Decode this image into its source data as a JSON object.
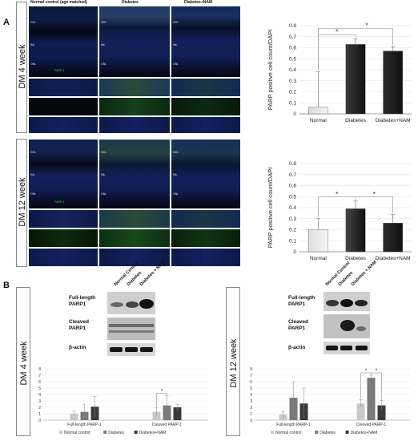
{
  "panels": {
    "A": "A",
    "B": "B"
  },
  "panel_a": {
    "column_headers": [
      "Normal control (age matched)",
      "Diabetes",
      "Diabetes+NAM"
    ],
    "row_label_top": "DM 4 week",
    "row_label_bottom": "DM 12 week",
    "layer_labels": {
      "gcl": "GCL",
      "inl": "INL",
      "onl": "ONL"
    },
    "marker_label": "PARP-1"
  },
  "panel_b": {
    "left": {
      "side_label": "DM 4 week",
      "lanes": [
        "Normal Control",
        "Diabetes",
        "Diabetes + NAM"
      ],
      "bands": [
        "Full-length PARP1",
        "Cleaved PARP1",
        "β-actin"
      ]
    },
    "right": {
      "side_label": "DM 12 week",
      "lanes": [
        "Normal Control",
        "Diabetes",
        "Diabetes + NAM"
      ],
      "bands": [
        "Full-length PARP1",
        "Cleaved PARP1",
        "β-actin"
      ]
    }
  },
  "chart_data": [
    {
      "type": "bar",
      "ylabel": "PARP positive cell count/DAPI",
      "categories": [
        "Normal",
        "Diabetes",
        "Diabetes+NAM"
      ],
      "values": [
        0.06,
        0.63,
        0.57
      ],
      "errors": [
        0.32,
        0.05,
        0.04
      ],
      "ylim": [
        0,
        0.8
      ],
      "yticks": [
        "0",
        "0.1",
        "0.2",
        "0.3",
        "0.4",
        "0.5",
        "0.6",
        "0.7",
        "0.8"
      ],
      "significance": [
        "*",
        "*"
      ],
      "colors": [
        "#d8d8d8",
        "#3a3a3a",
        "#2a2a2a"
      ]
    },
    {
      "type": "bar",
      "ylabel": "PARP positive cell count/DAPI",
      "categories": [
        "Normal",
        "Diabetes",
        "Diabetes+NAM"
      ],
      "values": [
        0.2,
        0.39,
        0.26
      ],
      "errors": [
        0.1,
        0.07,
        0.08
      ],
      "ylim": [
        0,
        0.8
      ],
      "yticks": [
        "0",
        "0.1",
        "0.2",
        "0.3",
        "0.4",
        "0.5",
        "0.6",
        "0.7",
        "0.8"
      ],
      "significance": [
        "*",
        "*"
      ],
      "colors": [
        "#e0e0e0",
        "#444444",
        "#2a2a2a"
      ]
    },
    {
      "type": "bar",
      "categories": [
        "Full-length PARP-1",
        "Cleaved PARP-1"
      ],
      "series": [
        {
          "name": "Normal control",
          "values": [
            1.0,
            1.3
          ],
          "errors": [
            0.4,
            0.6
          ]
        },
        {
          "name": "Diabetes",
          "values": [
            1.3,
            2.3
          ],
          "errors": [
            1.2,
            1.5
          ]
        },
        {
          "name": "Diabetes+NAM",
          "values": [
            2.1,
            2.0
          ],
          "errors": [
            1.6,
            0.5
          ]
        }
      ],
      "ylim": [
        0,
        8
      ],
      "yticks": [
        "0",
        "1",
        "2",
        "3",
        "4",
        "5",
        "6",
        "7",
        "8"
      ],
      "significance": [
        "*"
      ],
      "colors": [
        "#c8c8c8",
        "#7a7a7a",
        "#3a3a3a"
      ]
    },
    {
      "type": "bar",
      "categories": [
        "Full-length PARP-1",
        "Cleaved PARP-1"
      ],
      "series": [
        {
          "name": "Normal control",
          "values": [
            0.9,
            2.6
          ],
          "errors": [
            0.4,
            0.6
          ]
        },
        {
          "name": "Diabetes",
          "values": [
            3.5,
            6.6
          ],
          "errors": [
            2.5,
            0.4
          ]
        },
        {
          "name": "Diabetes+NAM",
          "values": [
            2.6,
            2.3
          ],
          "errors": [
            2.4,
            0.8
          ]
        }
      ],
      "ylim": [
        0,
        8
      ],
      "yticks": [
        "0",
        "1",
        "2",
        "3",
        "4",
        "5",
        "6",
        "7",
        "8"
      ],
      "significance": [
        "*",
        "*"
      ],
      "colors": [
        "#c8c8c8",
        "#7a7a7a",
        "#3a3a3a"
      ]
    }
  ]
}
